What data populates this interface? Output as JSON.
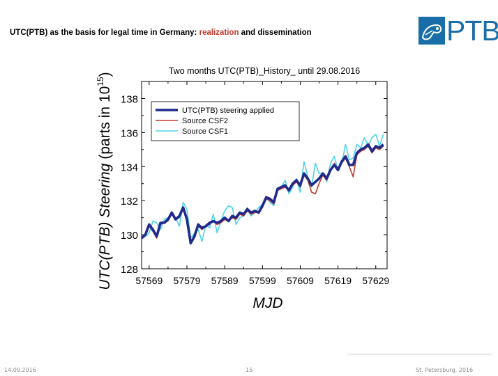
{
  "slide": {
    "title_part1": "UTC(PTB) as the basis for legal time in Germany: ",
    "title_highlight": "realization",
    "title_part2": " and dissemination",
    "highlight_color": "#c0392b",
    "logo_text": "PTB"
  },
  "footer": {
    "date": "14.09.2016",
    "page": "15",
    "location": "St. Petersburg, 2016"
  },
  "chart_data": {
    "type": "line",
    "title": "Two months UTC(PTB)_History_ until 29.08.2016",
    "xlabel": "MJD",
    "ylabel_part1": "UTC(PTB) ",
    "ylabel_italic": "Steering",
    "ylabel_part2": " (parts in 10",
    "ylabel_exp": "15",
    "ylabel_close": ")",
    "xlim": [
      57567,
      57632
    ],
    "ylim": [
      128,
      139
    ],
    "xticks": [
      57569,
      57579,
      57589,
      57599,
      57609,
      57619,
      57629
    ],
    "yticks": [
      128,
      130,
      132,
      134,
      136,
      138
    ],
    "legend_position": "top-left",
    "series": [
      {
        "name": "Source CSF1",
        "color": "#4fd3e6",
        "x": [
          57567,
          57568,
          57569,
          57570,
          57571,
          57572,
          57573,
          57574,
          57575,
          57576,
          57577,
          57578,
          57579,
          57580,
          57581,
          57582,
          57583,
          57584,
          57585,
          57586,
          57587,
          57588,
          57589,
          57590,
          57591,
          57592,
          57593,
          57594,
          57595,
          57596,
          57597,
          57598,
          57599,
          57600,
          57601,
          57602,
          57603,
          57604,
          57605,
          57606,
          57607,
          57608,
          57609,
          57610,
          57611,
          57612,
          57613,
          57614,
          57615,
          57616,
          57617,
          57618,
          57619,
          57620,
          57621,
          57622,
          57623,
          57624,
          57625,
          57626,
          57627,
          57628,
          57629,
          57630,
          57631
        ],
        "values": [
          129.8,
          129.9,
          130.1,
          130.8,
          130.7,
          130.3,
          130.9,
          131.0,
          131.3,
          131.0,
          130.5,
          131.9,
          131.5,
          129.8,
          130.1,
          130.3,
          129.6,
          130.6,
          130.4,
          131.2,
          130.1,
          130.8,
          131.4,
          131.7,
          131.6,
          130.6,
          131.0,
          131.1,
          131.6,
          131.1,
          131.3,
          131.6,
          131.8,
          132.2,
          131.9,
          131.7,
          132.6,
          132.8,
          133.2,
          132.4,
          132.8,
          133.3,
          132.5,
          134.3,
          133.4,
          132.8,
          134.2,
          133.6,
          133.6,
          133.1,
          134.2,
          134.6,
          133.8,
          134.2,
          135.3,
          134.4,
          134.5,
          135.3,
          135.1,
          135.7,
          135.2,
          135.7,
          135.9,
          135.2,
          135.9
        ]
      },
      {
        "name": "Source CSF2",
        "color": "#c0392b",
        "x": [
          57567,
          57568,
          57569,
          57570,
          57571,
          57572,
          57573,
          57574,
          57575,
          57576,
          57577,
          57578,
          57579,
          57580,
          57581,
          57582,
          57583,
          57584,
          57585,
          57586,
          57587,
          57588,
          57589,
          57590,
          57591,
          57592,
          57593,
          57594,
          57595,
          57596,
          57597,
          57598,
          57599,
          57600,
          57601,
          57602,
          57603,
          57604,
          57605,
          57606,
          57607,
          57608,
          57609,
          57610,
          57611,
          57612,
          57613,
          57614,
          57615,
          57616,
          57617,
          57618,
          57619,
          57620,
          57621,
          57622,
          57623,
          57624,
          57625,
          57626,
          57627,
          57628,
          57629,
          57630,
          57631
        ],
        "values": [
          129.8,
          130.0,
          130.5,
          130.2,
          129.8,
          130.6,
          130.7,
          130.8,
          131.2,
          130.9,
          131.0,
          131.5,
          130.8,
          129.5,
          129.9,
          130.5,
          130.3,
          130.5,
          130.6,
          130.8,
          130.6,
          130.7,
          130.9,
          130.8,
          131.0,
          130.9,
          131.2,
          131.1,
          131.4,
          131.2,
          131.3,
          131.3,
          131.6,
          132.1,
          132.0,
          131.8,
          132.6,
          132.7,
          132.8,
          132.6,
          132.9,
          133.1,
          132.8,
          133.5,
          133.2,
          132.5,
          132.4,
          133.0,
          133.5,
          133.2,
          133.7,
          134.2,
          133.9,
          134.2,
          134.5,
          134.0,
          133.4,
          134.7,
          134.9,
          135.0,
          135.2,
          134.8,
          135.1,
          135.0,
          135.2
        ]
      },
      {
        "name": "UTC(PTB) steering applied",
        "color": "#1f2a8c",
        "x": [
          57567,
          57568,
          57569,
          57570,
          57571,
          57572,
          57573,
          57574,
          57575,
          57576,
          57577,
          57578,
          57579,
          57580,
          57581,
          57582,
          57583,
          57584,
          57585,
          57586,
          57587,
          57588,
          57589,
          57590,
          57591,
          57592,
          57593,
          57594,
          57595,
          57596,
          57597,
          57598,
          57599,
          57600,
          57601,
          57602,
          57603,
          57604,
          57605,
          57606,
          57607,
          57608,
          57609,
          57610,
          57611,
          57612,
          57613,
          57614,
          57615,
          57616,
          57617,
          57618,
          57619,
          57620,
          57621,
          57622,
          57623,
          57624,
          57625,
          57626,
          57627,
          57628,
          57629,
          57630,
          57631
        ],
        "values": [
          129.8,
          130.0,
          130.6,
          130.3,
          129.9,
          130.7,
          130.7,
          130.9,
          131.3,
          130.9,
          131.1,
          131.6,
          130.9,
          129.5,
          129.9,
          130.6,
          130.4,
          130.5,
          130.7,
          130.8,
          130.7,
          130.8,
          131.0,
          130.8,
          131.1,
          131.0,
          131.3,
          131.2,
          131.5,
          131.3,
          131.4,
          131.3,
          131.7,
          132.2,
          132.1,
          131.9,
          132.7,
          132.8,
          132.9,
          132.6,
          133.0,
          133.2,
          132.9,
          133.6,
          133.3,
          132.9,
          133.1,
          133.3,
          133.6,
          133.3,
          133.8,
          134.1,
          133.8,
          134.3,
          134.6,
          134.1,
          134.1,
          134.8,
          135.0,
          135.1,
          135.3,
          134.9,
          135.2,
          135.1,
          135.3
        ]
      }
    ]
  }
}
